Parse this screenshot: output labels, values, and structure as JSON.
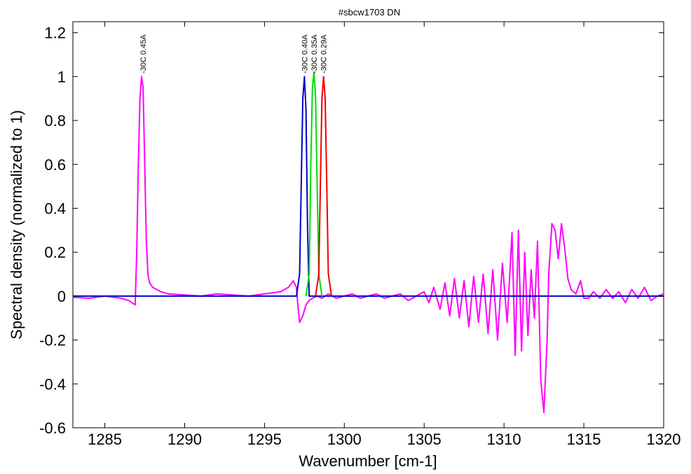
{
  "chart_data": {
    "type": "line",
    "title": "#sbcw1703 DN",
    "xlabel": "Wavenumber [cm-1]",
    "ylabel": "Spectral density (normalized to 1)",
    "xlim": [
      1283,
      1320
    ],
    "ylim": [
      -0.6,
      1.25
    ],
    "grid": false,
    "legend": "none",
    "x_ticks": [
      1285,
      1290,
      1295,
      1300,
      1305,
      1310,
      1315,
      1320
    ],
    "y_ticks": [
      -0.6,
      -0.4,
      -0.2,
      0,
      0.2,
      0.4,
      0.6,
      0.8,
      1,
      1.2
    ],
    "x_tick_labels": [
      "1285",
      "1290",
      "1295",
      "1300",
      "1305",
      "1310",
      "1315",
      "1320"
    ],
    "y_tick_labels": [
      "-0.6",
      "-0.4",
      "-0.2",
      "0",
      "0.2",
      "0.4",
      "0.6",
      "0.8",
      "1",
      "1.2"
    ],
    "annotations": [
      {
        "text": "-30C 0.45A",
        "x": 1287.4,
        "color": "#ff00ff"
      },
      {
        "text": "-30C 0.40A",
        "x": 1297.5,
        "color": "#0000cc"
      },
      {
        "text": "-30C 0.35A",
        "x": 1298.1,
        "color": "#00dd00"
      },
      {
        "text": "-30C 0.29A",
        "x": 1298.7,
        "color": "#ee0000"
      }
    ],
    "series": [
      {
        "color": "#ff00ff",
        "x": [
          1283,
          1284,
          1285,
          1286,
          1286.5,
          1286.9,
          1287.0,
          1287.1,
          1287.2,
          1287.3,
          1287.4,
          1287.5,
          1287.6,
          1287.7,
          1287.8,
          1288,
          1288.5,
          1289,
          1290,
          1291,
          1292,
          1293,
          1294,
          1295,
          1296,
          1296.5,
          1296.8,
          1297,
          1297.1,
          1297.2,
          1297.4,
          1297.6,
          1297.8,
          1298,
          1298.3,
          1298.6,
          1299,
          1299.5,
          1300,
          1300.5,
          1301,
          1301.5,
          1302,
          1302.5,
          1303,
          1303.5,
          1304,
          1304.5,
          1305,
          1305.3,
          1305.6,
          1306,
          1306.3,
          1306.6,
          1306.9,
          1307.2,
          1307.5,
          1307.8,
          1308.1,
          1308.4,
          1308.7,
          1309.0,
          1309.3,
          1309.6,
          1309.9,
          1310.2,
          1310.5,
          1310.7,
          1310.9,
          1311.1,
          1311.3,
          1311.5,
          1311.7,
          1311.9,
          1312.1,
          1312.3,
          1312.5,
          1312.7,
          1312.8,
          1313.0,
          1313.2,
          1313.4,
          1313.6,
          1313.8,
          1314.0,
          1314.2,
          1314.5,
          1314.8,
          1315.0,
          1315.3,
          1315.6,
          1316,
          1316.4,
          1316.8,
          1317.2,
          1317.6,
          1318,
          1318.4,
          1318.8,
          1319.2,
          1319.6,
          1320
        ],
        "y": [
          -0.005,
          -0.01,
          0.0,
          -0.01,
          -0.02,
          -0.04,
          0.2,
          0.6,
          0.9,
          1.0,
          0.95,
          0.6,
          0.25,
          0.1,
          0.06,
          0.04,
          0.02,
          0.01,
          0.005,
          0.0,
          0.01,
          0.005,
          0.0,
          0.01,
          0.02,
          0.04,
          0.07,
          0.04,
          -0.05,
          -0.12,
          -0.09,
          -0.04,
          -0.02,
          -0.01,
          0.0,
          -0.01,
          0.01,
          -0.01,
          0.0,
          0.01,
          -0.01,
          0.0,
          0.01,
          -0.01,
          0.0,
          0.01,
          -0.02,
          0.0,
          0.02,
          -0.03,
          0.04,
          -0.06,
          0.06,
          -0.09,
          0.08,
          -0.1,
          0.07,
          -0.14,
          0.09,
          -0.12,
          0.1,
          -0.17,
          0.12,
          -0.2,
          0.15,
          -0.12,
          0.29,
          -0.27,
          0.3,
          -0.25,
          0.2,
          -0.18,
          0.12,
          -0.1,
          0.25,
          -0.38,
          -0.53,
          -0.2,
          0.1,
          0.33,
          0.3,
          0.17,
          0.33,
          0.22,
          0.08,
          0.03,
          0.01,
          0.07,
          -0.01,
          -0.01,
          0.02,
          -0.01,
          0.03,
          -0.01,
          0.02,
          -0.03,
          0.03,
          -0.01,
          0.04,
          -0.02,
          0.0,
          0.01
        ]
      },
      {
        "color": "#0000cc",
        "x": [
          1283,
          1297.0,
          1297.2,
          1297.3,
          1297.4,
          1297.5,
          1297.6,
          1297.7,
          1297.8,
          1320
        ],
        "y": [
          0.0,
          0.0,
          0.1,
          0.5,
          0.9,
          1.0,
          0.85,
          0.3,
          0.0,
          0.0
        ]
      },
      {
        "color": "#00dd00",
        "x": [
          1297.6,
          1297.8,
          1297.9,
          1298.0,
          1298.1,
          1298.2,
          1298.3,
          1298.4,
          1298.6
        ],
        "y": [
          0.0,
          0.1,
          0.6,
          0.95,
          1.02,
          0.9,
          0.5,
          0.1,
          0.0
        ]
      },
      {
        "color": "#ee0000",
        "x": [
          1298.2,
          1298.4,
          1298.5,
          1298.6,
          1298.7,
          1298.8,
          1298.9,
          1299.0,
          1299.2
        ],
        "y": [
          0.0,
          0.1,
          0.5,
          0.9,
          1.0,
          0.9,
          0.5,
          0.1,
          0.0
        ]
      }
    ]
  }
}
